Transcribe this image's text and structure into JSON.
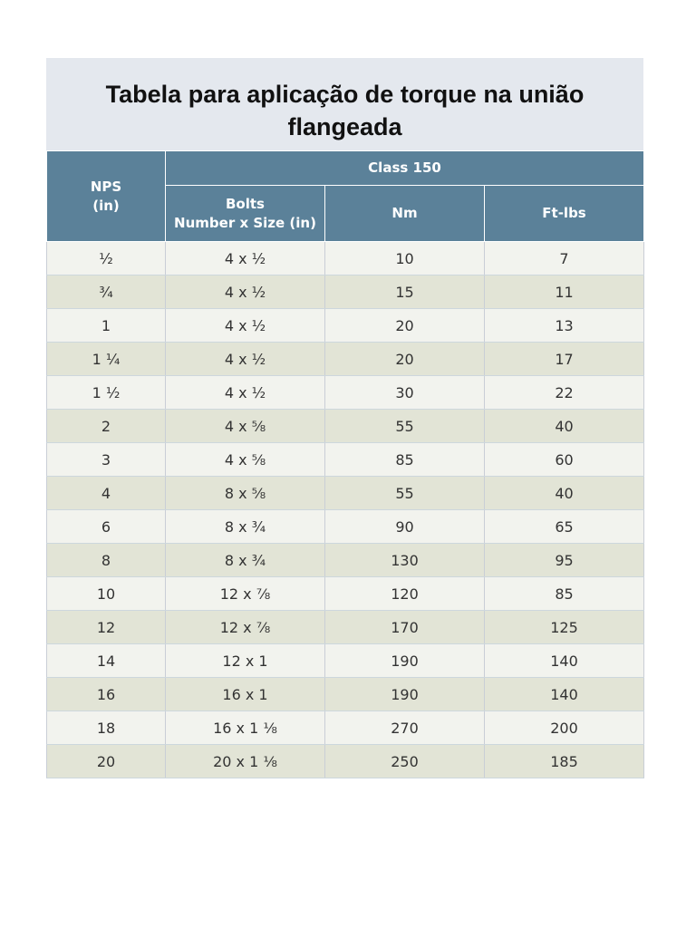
{
  "title": {
    "line1": "Tabela para aplicação de torque na união",
    "line2": "flangeada"
  },
  "header": {
    "nps_line1": "NPS",
    "nps_line2": "(in)",
    "class_label": "Class 150",
    "bolts_line1": "Bolts",
    "bolts_line2": "Number x Size (in)",
    "nm": "Nm",
    "ftlbs": "Ft-lbs"
  },
  "rows": [
    {
      "nps": "½",
      "bolts": "4 x ½",
      "nm": "10",
      "ftlbs": "7"
    },
    {
      "nps": "¾",
      "bolts": "4 x ½",
      "nm": "15",
      "ftlbs": "11"
    },
    {
      "nps": "1",
      "bolts": "4 x ½",
      "nm": "20",
      "ftlbs": "13"
    },
    {
      "nps": "1 ¼",
      "bolts": "4 x ½",
      "nm": "20",
      "ftlbs": "17"
    },
    {
      "nps": "1 ½",
      "bolts": "4 x ½",
      "nm": "30",
      "ftlbs": "22"
    },
    {
      "nps": "2",
      "bolts": "4 x ⅝",
      "nm": "55",
      "ftlbs": "40"
    },
    {
      "nps": "3",
      "bolts": "4 x ⅝",
      "nm": "85",
      "ftlbs": "60"
    },
    {
      "nps": "4",
      "bolts": "8 x ⅝",
      "nm": "55",
      "ftlbs": "40"
    },
    {
      "nps": "6",
      "bolts": "8 x ¾",
      "nm": "90",
      "ftlbs": "65"
    },
    {
      "nps": "8",
      "bolts": "8 x ¾",
      "nm": "130",
      "ftlbs": "95"
    },
    {
      "nps": "10",
      "bolts": "12 x ⅞",
      "nm": "120",
      "ftlbs": "85"
    },
    {
      "nps": "12",
      "bolts": "12 x ⅞",
      "nm": "170",
      "ftlbs": "125"
    },
    {
      "nps": "14",
      "bolts": "12 x 1",
      "nm": "190",
      "ftlbs": "140"
    },
    {
      "nps": "16",
      "bolts": "16 x 1",
      "nm": "190",
      "ftlbs": "140"
    },
    {
      "nps": "18",
      "bolts": "16 x 1 ⅛",
      "nm": "270",
      "ftlbs": "200"
    },
    {
      "nps": "20",
      "bolts": "20 x 1 ⅛",
      "nm": "250",
      "ftlbs": "185"
    }
  ],
  "colors": {
    "header_bg": "#5b8199",
    "title_bg": "#e4e8ee",
    "row_light": "#f2f3ee",
    "row_dark": "#e2e4d6"
  }
}
